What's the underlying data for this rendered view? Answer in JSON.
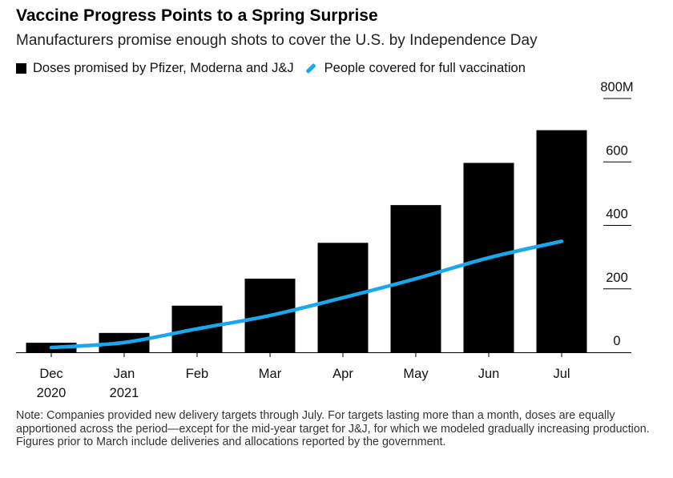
{
  "chart_data": {
    "type": "bar",
    "title": "Vaccine Progress Points to a Spring Surprise",
    "subtitle": "Manufacturers promise enough shots to cover the U.S. by Independence Day",
    "categories": [
      "Dec\n2020",
      "Jan\n2021",
      "Feb",
      "Mar",
      "Apr",
      "May",
      "Jun",
      "Jul"
    ],
    "series": [
      {
        "name": "Doses promised by Pfizer, Moderna and J&J",
        "type": "bar",
        "color": "#000000",
        "values": [
          30,
          61,
          147,
          232,
          345,
          464,
          597,
          700
        ]
      },
      {
        "name": "People covered for full vaccination",
        "type": "line",
        "color": "#1aa7ee",
        "values": [
          15,
          31,
          74,
          116,
          172,
          232,
          298,
          350
        ]
      }
    ],
    "ylim": [
      0,
      800
    ],
    "yticks": [
      {
        "value": 0,
        "label": "0"
      },
      {
        "value": 200,
        "label": "200"
      },
      {
        "value": 400,
        "label": "400"
      },
      {
        "value": 600,
        "label": "600"
      },
      {
        "value": 800,
        "label": "800M"
      }
    ],
    "xlabel": "",
    "ylabel": "",
    "legend_position": "top-left",
    "grid": false,
    "note": "Note: Companies provided new delivery targets through July. For targets lasting more than a month, doses are equally apportioned across the period—except for the mid-year target for J&J, for which we modeled gradually increasing production. Figures prior to March include deliveries and allocations reported by the government."
  }
}
